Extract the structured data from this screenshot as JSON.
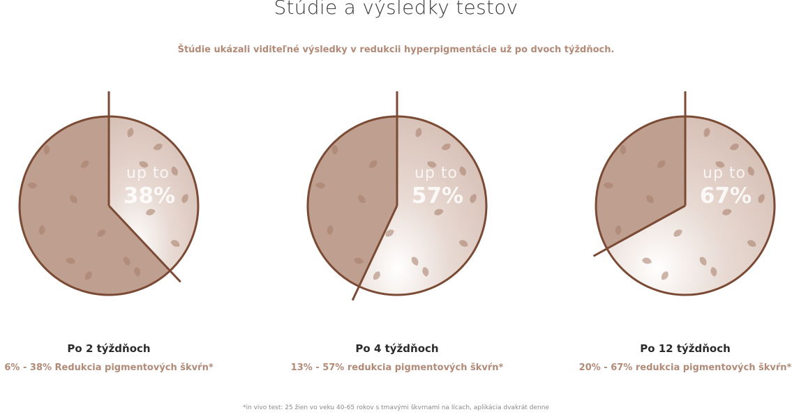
{
  "header": {
    "title": "Štúdie a výsledky testov",
    "subtitle": "Štúdie ukázali viditeľné výsledky v redukcii hyperpigmentácie už po dvoch týždňoch."
  },
  "colors": {
    "accent": "#b28a78",
    "pie_dark": "#bf9f90",
    "pie_light": "#d6bfb5",
    "outline": "#7a4a34",
    "spot": "#a57b68"
  },
  "chart_data": [
    {
      "type": "pie",
      "label": "up to",
      "value_label": "38%",
      "values": [
        38,
        62
      ],
      "caption": "Po 2 týždňoch",
      "result": "6% - 38% Redukcia pigmentových škvŕn*"
    },
    {
      "type": "pie",
      "label": "up to",
      "value_label": "57%",
      "values": [
        57,
        43
      ],
      "caption": "Po 4 týždňoch",
      "result": "13% - 57% redukcia pigmentových škvŕn*"
    },
    {
      "type": "pie",
      "label": "up to",
      "value_label": "67%",
      "values": [
        67,
        33
      ],
      "caption": "Po 12 týždňoch",
      "result": "20% - 67% redukcia pigmentových škvŕn*"
    }
  ],
  "footnote": "*in vivo test: 25 žien vo veku 40-65 rokov s tmavými škvrnami na lícach, aplikácia dvakrát denne"
}
